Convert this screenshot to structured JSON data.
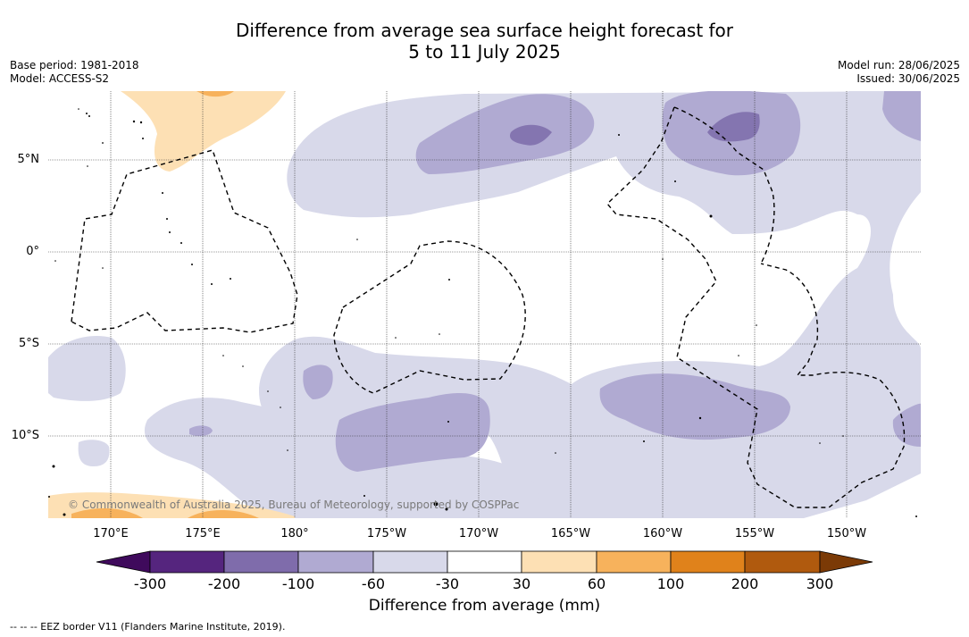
{
  "title": {
    "line1": "Difference from average sea surface height forecast for",
    "line2": "5 to 11 July 2025"
  },
  "meta_left": {
    "base_period": "Base period: 1981-2018",
    "model": "Model: ACCESS-S2"
  },
  "meta_right": {
    "model_run": "Model run: 28/06/2025",
    "issued": "Issued: 30/06/2025"
  },
  "map": {
    "lat_labels": [
      "5°N",
      "0°",
      "5°S",
      "10°S"
    ],
    "lon_labels": [
      "170°E",
      "175°E",
      "180°",
      "175°W",
      "170°W",
      "165°W",
      "160°W",
      "155°W",
      "150°W"
    ],
    "copyright": "© Commonwealth of Australia 2025, Bureau of Meteorology, supported by COSPPac",
    "colors": {
      "ocean": "#ffffff",
      "neg_30_60": "#d8d9ea",
      "neg_60_100": "#b0aad2",
      "neg_100_200": "#8475b0",
      "pos_30_60": "#fde0b4",
      "pos_60_100": "#f7b25c"
    }
  },
  "colorbar": {
    "title": "Difference from average (mm)",
    "ticks": [
      "-300",
      "-200",
      "-100",
      "-60",
      "-30",
      "30",
      "60",
      "100",
      "200",
      "300"
    ],
    "colors": [
      "#3f0a5c",
      "#55257e",
      "#7f6cab",
      "#b0aad2",
      "#d8d9ea",
      "#ffffff",
      "#fde0b4",
      "#f7b25c",
      "#e0821b",
      "#b05a0e",
      "#7b3a06"
    ]
  },
  "footer": {
    "eez_legend": "-- -- -- EEZ border V11 (Flanders Marine Institute, 2019)."
  }
}
